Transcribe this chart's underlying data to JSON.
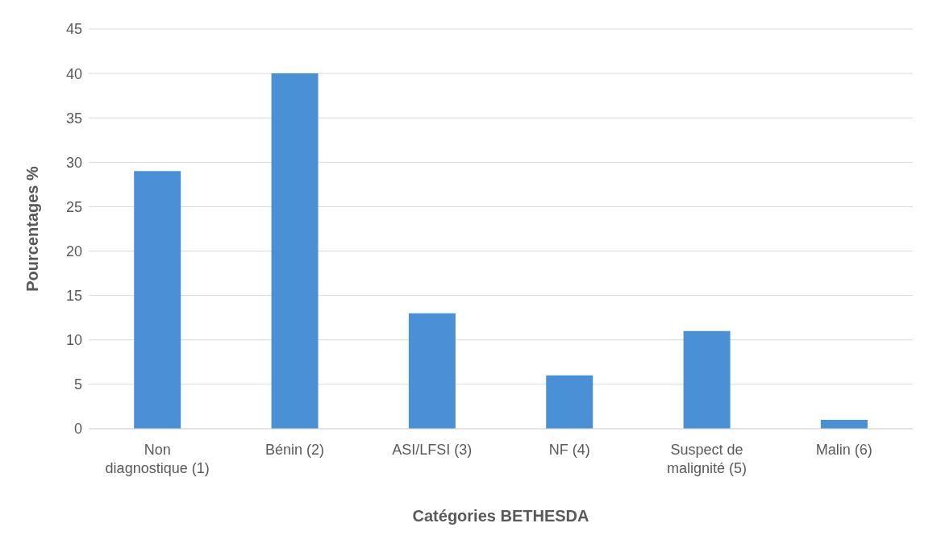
{
  "chart_data": {
    "type": "bar",
    "xlabel": "Catégories BETHESDA",
    "ylabel": "Pourcentages %",
    "categories": [
      "Non diagnostique (1)",
      "Bénin (2)",
      "ASI/LFSI (3)",
      "NF (4)",
      "Suspect de malignité (5)",
      "Malin (6)"
    ],
    "values": [
      29,
      40,
      13,
      6,
      11,
      1
    ],
    "color": "#4a90d6",
    "ylim": [
      0,
      45
    ],
    "yticks": [
      0,
      5,
      10,
      15,
      20,
      25,
      30,
      35,
      40,
      45
    ],
    "grid": "y"
  }
}
